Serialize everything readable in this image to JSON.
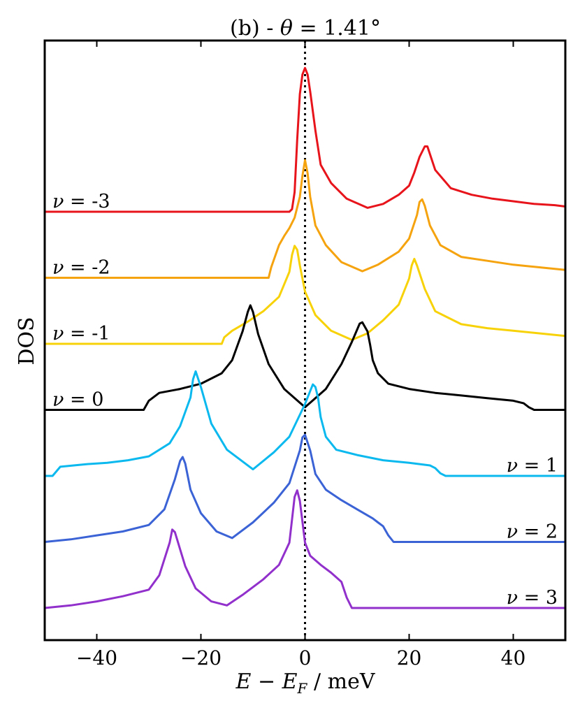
{
  "chart_data": {
    "type": "line",
    "title": "(b) - θ = 1.41°",
    "title_parts": {
      "prefix": "(b) - ",
      "symbol": "θ",
      "rest": " = 1.41°"
    },
    "xlabel": "E − E_F / meV",
    "xlabel_parts": {
      "e": "E",
      "minus": " − ",
      "ef": "E",
      "sub": "F",
      "unit": " / meV"
    },
    "ylabel": "DOS",
    "xlim": [
      -50,
      50
    ],
    "xticks": [
      -40,
      -20,
      0,
      20,
      40
    ],
    "xtick_labels": [
      "−40",
      "−20",
      "0",
      "20",
      "40"
    ],
    "yticks_visible": false,
    "reference_line": {
      "x": 0,
      "style": "dotted",
      "color": "#000000"
    },
    "series": [
      {
        "name": "ν = -3",
        "nu": "-3",
        "color": "#e8141c",
        "label_side": "left",
        "offset": 6,
        "x": [
          -50,
          -3,
          -2.5,
          -2,
          -1.5,
          -1,
          -0.5,
          0,
          0.5,
          1,
          2,
          3,
          5,
          8,
          12,
          15,
          18,
          20,
          21,
          22,
          23,
          23.5,
          25,
          28,
          32,
          36,
          40,
          44,
          48,
          50
        ],
        "y": [
          0,
          0,
          0.02,
          0.15,
          0.55,
          0.9,
          1.05,
          1.1,
          1.05,
          0.92,
          0.62,
          0.36,
          0.22,
          0.1,
          0.03,
          0.06,
          0.13,
          0.2,
          0.3,
          0.42,
          0.5,
          0.5,
          0.32,
          0.18,
          0.13,
          0.1,
          0.08,
          0.06,
          0.05,
          0.04
        ]
      },
      {
        "name": "ν = -2",
        "nu": "-2",
        "color": "#f5a30f",
        "label_side": "left",
        "offset": 5,
        "x": [
          -50,
          -7,
          -6.5,
          -5,
          -4,
          -3,
          -2,
          -1,
          -0.5,
          0,
          0.5,
          1,
          2,
          4,
          7,
          11,
          14,
          18,
          20,
          21.5,
          22,
          22.5,
          23,
          24,
          26,
          30,
          35,
          40,
          45,
          50
        ],
        "y": [
          0,
          0,
          0.08,
          0.25,
          0.32,
          0.38,
          0.46,
          0.62,
          0.78,
          0.9,
          0.8,
          0.62,
          0.4,
          0.25,
          0.12,
          0.05,
          0.1,
          0.2,
          0.3,
          0.48,
          0.58,
          0.6,
          0.55,
          0.4,
          0.25,
          0.16,
          0.13,
          0.1,
          0.08,
          0.06
        ]
      },
      {
        "name": "ν = -1",
        "nu": "-1",
        "color": "#f8d208",
        "label_side": "left",
        "offset": 4,
        "x": [
          -50,
          -16,
          -15.5,
          -14,
          -11,
          -8,
          -5,
          -3,
          -2.5,
          -2,
          -1.5,
          -1,
          0,
          2,
          5,
          9,
          12,
          15,
          18,
          20,
          20.5,
          21,
          21.5,
          23,
          25,
          30,
          35,
          40,
          45,
          50
        ],
        "y": [
          0,
          0,
          0.05,
          0.1,
          0.17,
          0.25,
          0.36,
          0.55,
          0.68,
          0.75,
          0.72,
          0.6,
          0.4,
          0.22,
          0.1,
          0.03,
          0.08,
          0.18,
          0.3,
          0.5,
          0.6,
          0.65,
          0.6,
          0.42,
          0.25,
          0.15,
          0.12,
          0.1,
          0.08,
          0.06
        ]
      },
      {
        "name": "ν = 0",
        "nu": "0",
        "color": "#000000",
        "label_side": "left",
        "offset": 3,
        "x": [
          -50,
          -31,
          -30,
          -28,
          -24,
          -20,
          -16,
          -14,
          -12,
          -11,
          -10.5,
          -10,
          -9,
          -7,
          -4,
          0,
          4,
          7,
          9,
          10.5,
          11,
          12,
          12.5,
          13,
          14,
          16,
          20,
          25,
          30,
          35,
          40,
          42,
          43,
          44,
          50
        ],
        "y": [
          0,
          0,
          0.07,
          0.13,
          0.16,
          0.2,
          0.28,
          0.38,
          0.6,
          0.75,
          0.8,
          0.75,
          0.58,
          0.35,
          0.16,
          0.02,
          0.16,
          0.35,
          0.52,
          0.66,
          0.67,
          0.6,
          0.5,
          0.38,
          0.28,
          0.2,
          0.16,
          0.13,
          0.11,
          0.09,
          0.07,
          0.05,
          0.02,
          0,
          0
        ]
      },
      {
        "name": "ν = 1",
        "nu": "1",
        "color": "#0bb9ef",
        "label_side": "right",
        "offset": 2,
        "x": [
          -50,
          -48.5,
          -47,
          -42,
          -38,
          -34,
          -30,
          -26,
          -24,
          -22,
          -21.5,
          -21,
          -20,
          -18,
          -15,
          -10,
          -6,
          -3,
          0,
          1,
          1.5,
          2,
          2.5,
          3,
          4,
          6,
          10,
          15,
          20,
          24,
          25,
          26,
          27,
          50
        ],
        "y": [
          0,
          0,
          0.07,
          0.09,
          0.1,
          0.12,
          0.15,
          0.25,
          0.38,
          0.6,
          0.74,
          0.8,
          0.68,
          0.4,
          0.2,
          0.05,
          0.18,
          0.3,
          0.55,
          0.65,
          0.7,
          0.68,
          0.6,
          0.45,
          0.3,
          0.2,
          0.16,
          0.12,
          0.1,
          0.08,
          0.06,
          0.02,
          0,
          0
        ]
      },
      {
        "name": "ν = 2",
        "nu": "2",
        "color": "#3b63d6",
        "label_side": "right",
        "offset": 1,
        "x": [
          -50,
          -45,
          -40,
          -35,
          -30,
          -27,
          -25,
          -24,
          -23.5,
          -23,
          -22,
          -20,
          -17,
          -14,
          -10,
          -6,
          -3,
          -1,
          -0.5,
          0,
          1,
          2,
          4,
          7,
          10,
          13,
          14,
          15,
          16,
          17,
          50
        ],
        "y": [
          0,
          0.02,
          0.05,
          0.08,
          0.13,
          0.25,
          0.48,
          0.62,
          0.65,
          0.6,
          0.4,
          0.22,
          0.08,
          0.03,
          0.15,
          0.3,
          0.45,
          0.7,
          0.8,
          0.82,
          0.7,
          0.52,
          0.4,
          0.32,
          0.25,
          0.18,
          0.15,
          0.12,
          0.05,
          0,
          0
        ]
      },
      {
        "name": "ν = 3",
        "nu": "3",
        "color": "#9230cc",
        "label_side": "right",
        "offset": 0,
        "x": [
          -50,
          -45,
          -40,
          -35,
          -30,
          -28,
          -26,
          -25.5,
          -25,
          -24,
          -23,
          -21,
          -18,
          -15,
          -12,
          -8,
          -5,
          -3,
          -2,
          -1.5,
          -1,
          0,
          1,
          3,
          5,
          7,
          8,
          9,
          10,
          50
        ],
        "y": [
          0,
          0.02,
          0.05,
          0.09,
          0.14,
          0.25,
          0.5,
          0.6,
          0.58,
          0.45,
          0.32,
          0.15,
          0.05,
          0.02,
          0.1,
          0.22,
          0.33,
          0.5,
          0.85,
          0.9,
          0.82,
          0.5,
          0.4,
          0.33,
          0.27,
          0.2,
          0.08,
          0,
          0,
          0
        ]
      }
    ]
  }
}
